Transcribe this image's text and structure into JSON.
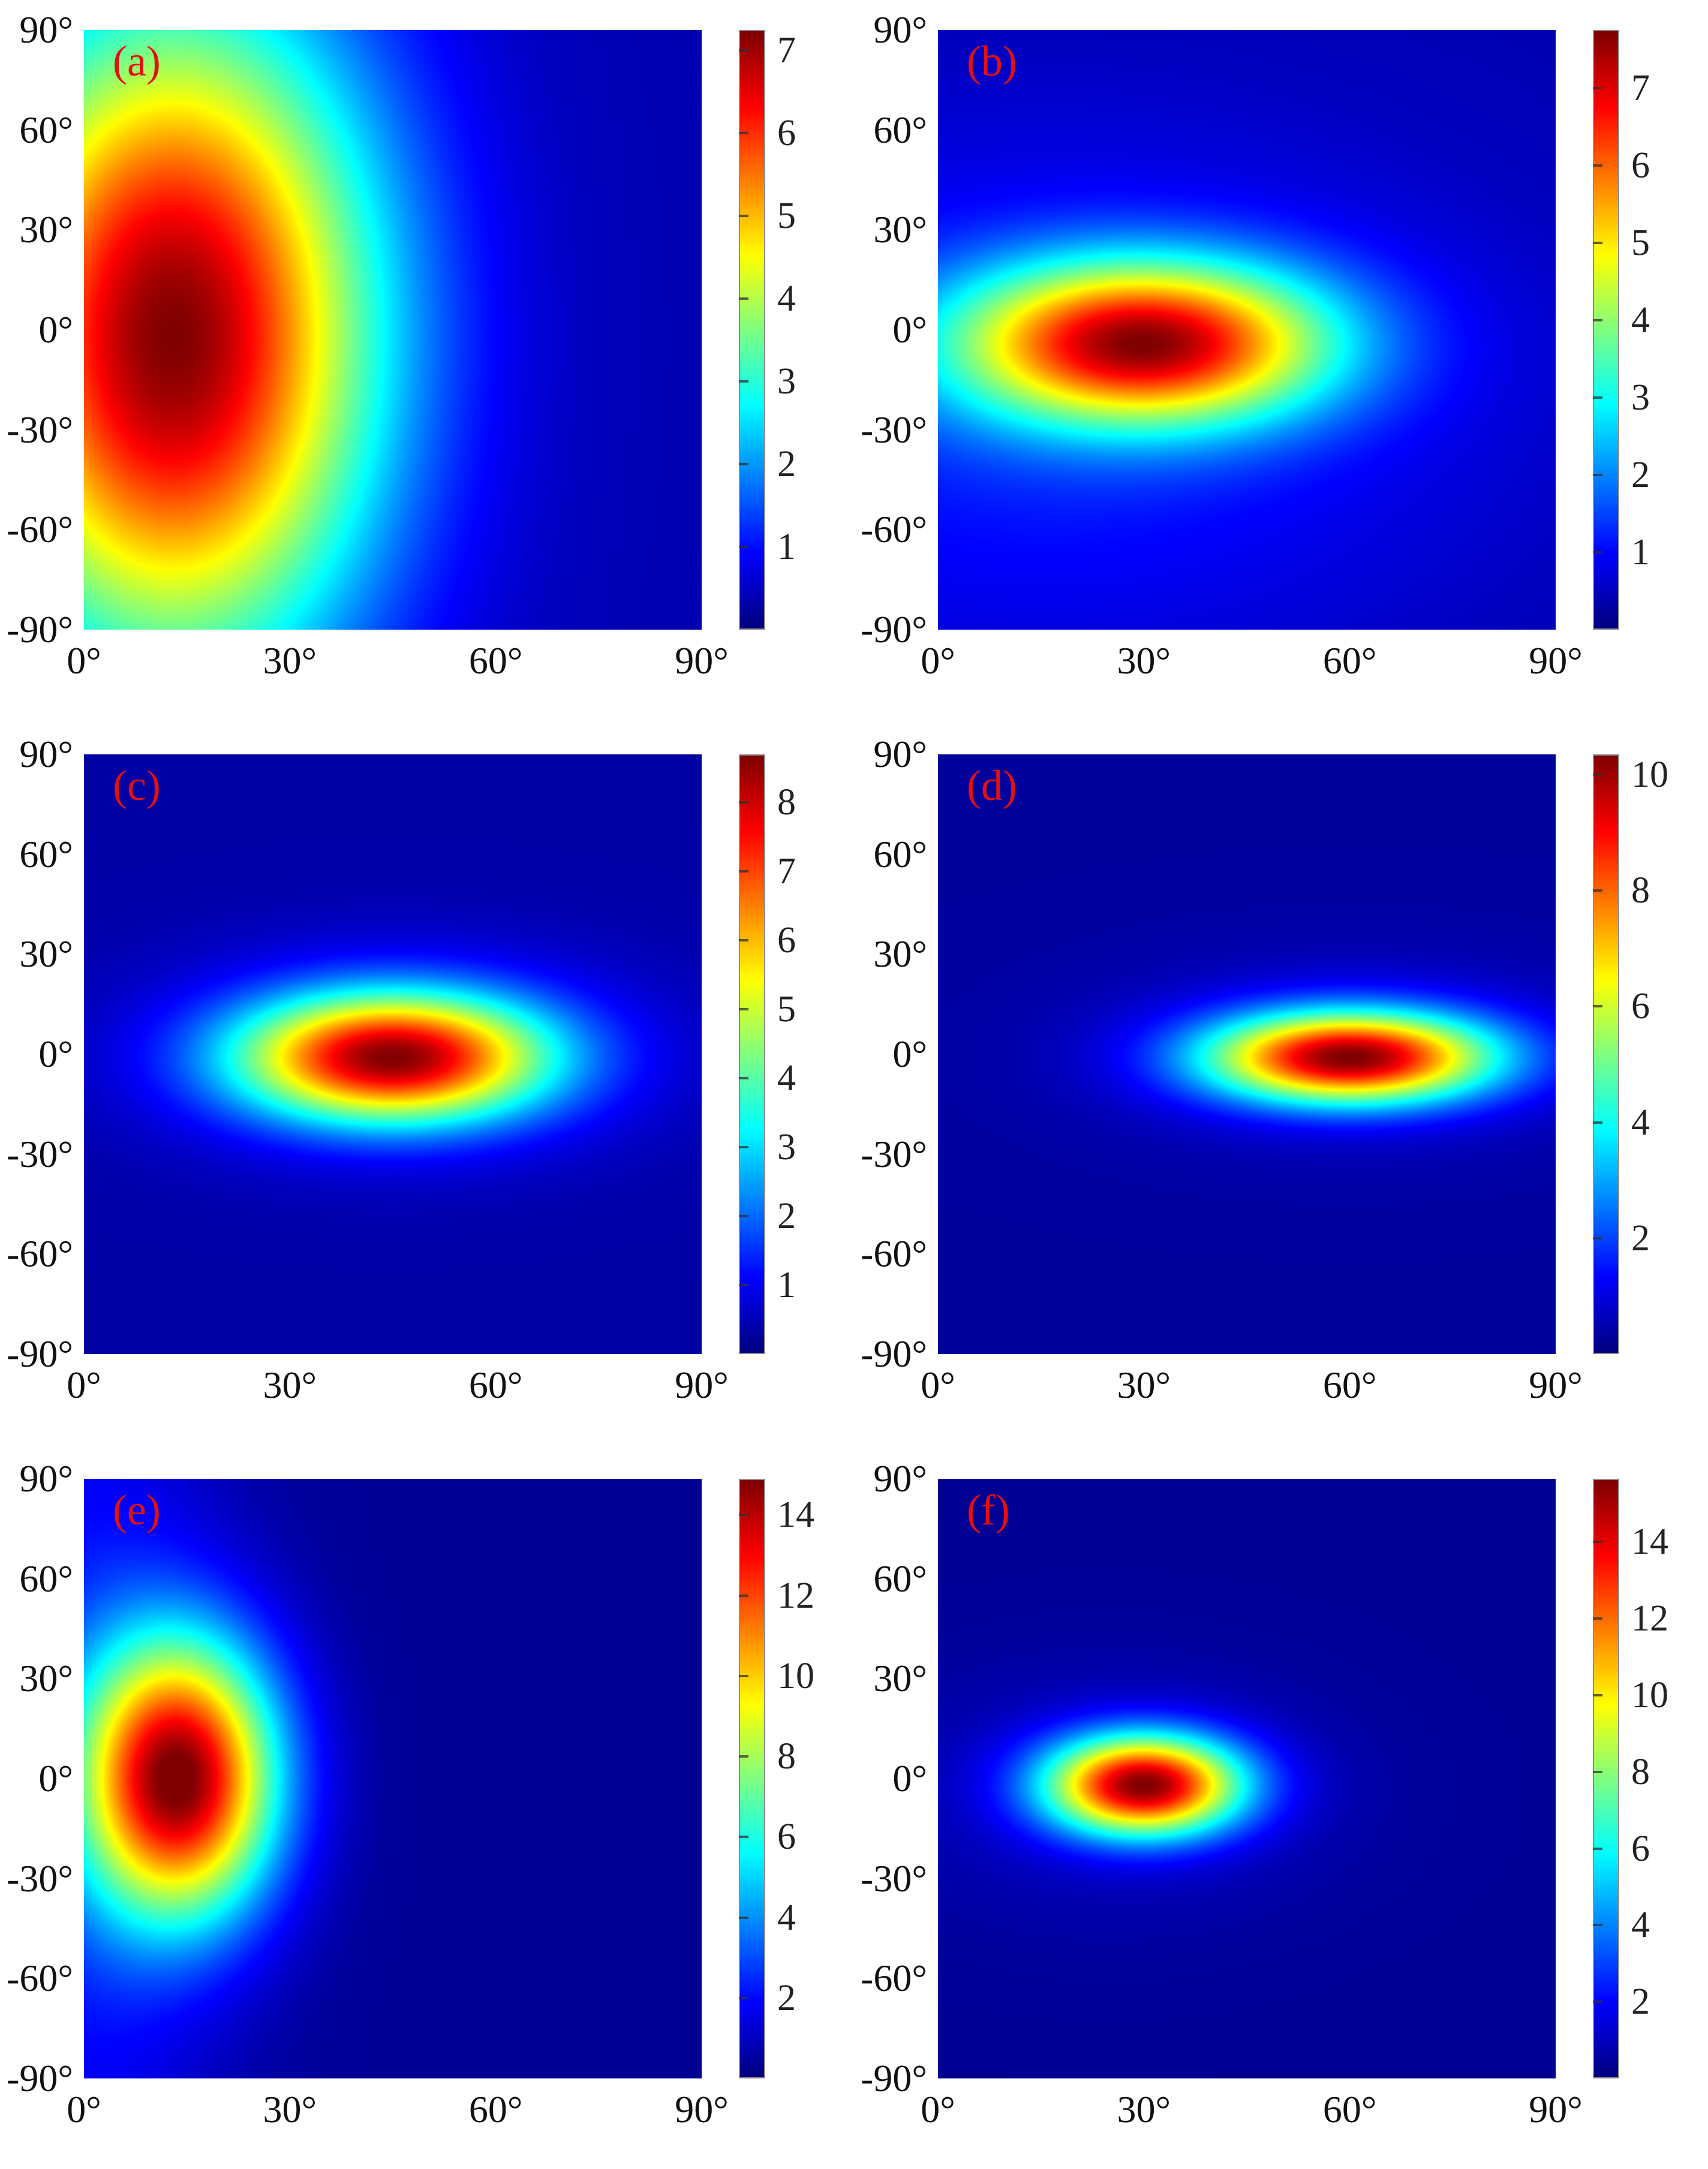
{
  "figure": {
    "kind": "heatmap-grid",
    "rows": 3,
    "cols": 2,
    "colormap": "jet",
    "label_color": "#e41010"
  },
  "axes": {
    "x_ticks": [
      "0°",
      "30°",
      "60°",
      "90°"
    ],
    "y_ticks": [
      "90°",
      "60°",
      "30°",
      "0°",
      "-30°",
      "-60°",
      "-90°"
    ],
    "x_range_deg": [
      0,
      90
    ],
    "y_range_deg": [
      -90,
      90
    ]
  },
  "chart_data": [
    {
      "panel": "a",
      "label": "(a)",
      "type": "heatmap",
      "colormap": "jet",
      "x_range_deg": [
        0,
        90
      ],
      "y_range_deg": [
        -90,
        90
      ],
      "peak": {
        "x_deg": 13,
        "y_deg": 0,
        "value": 7.2
      },
      "colorbar": {
        "ticks": [
          7,
          6,
          5,
          4,
          3,
          2,
          1
        ],
        "scale_max": 7.25
      },
      "baseline": 0.35,
      "components": [
        {
          "amp": 6.9,
          "x0": 13,
          "y0": -2,
          "sx": 21,
          "sy": 70
        }
      ]
    },
    {
      "panel": "b",
      "label": "(b)",
      "type": "heatmap",
      "colormap": "jet",
      "x_range_deg": [
        0,
        90
      ],
      "y_range_deg": [
        -90,
        90
      ],
      "peak": {
        "x_deg": 30,
        "y_deg": -3,
        "value": 7.7
      },
      "colorbar": {
        "ticks": [
          7,
          6,
          5,
          4,
          3,
          2,
          1
        ],
        "scale_max": 7.75
      },
      "baseline": 0.35,
      "components": [
        {
          "amp": 6.6,
          "x0": 30,
          "y0": -4,
          "sx": 19,
          "sy": 17
        },
        {
          "amp": 0.9,
          "x0": 15,
          "y0": -20,
          "sx": 45,
          "sy": 55
        }
      ]
    },
    {
      "panel": "c",
      "label": "(c)",
      "type": "heatmap",
      "colormap": "jet",
      "x_range_deg": [
        0,
        90
      ],
      "y_range_deg": [
        -90,
        90
      ],
      "peak": {
        "x_deg": 45,
        "y_deg": 0,
        "value": 8.6
      },
      "colorbar": {
        "ticks": [
          8,
          7,
          6,
          5,
          4,
          3,
          2,
          1
        ],
        "scale_max": 8.7
      },
      "baseline": 0.3,
      "components": [
        {
          "amp": 7.8,
          "x0": 45,
          "y0": -1,
          "sx": 16,
          "sy": 13.5
        },
        {
          "amp": 0.6,
          "x0": 45,
          "y0": 0,
          "sx": 30,
          "sy": 26
        }
      ]
    },
    {
      "panel": "d",
      "label": "(d)",
      "type": "heatmap",
      "colormap": "jet",
      "x_range_deg": [
        0,
        90
      ],
      "y_range_deg": [
        -90,
        90
      ],
      "peak": {
        "x_deg": 60,
        "y_deg": 0,
        "value": 10.3
      },
      "colorbar": {
        "ticks": [
          10,
          8,
          6,
          4,
          2
        ],
        "scale_max": 10.35
      },
      "baseline": 0.3,
      "components": [
        {
          "amp": 9.4,
          "x0": 60,
          "y0": -1,
          "sx": 14.5,
          "sy": 9.5
        },
        {
          "amp": 0.7,
          "x0": 60,
          "y0": 0,
          "sx": 27,
          "sy": 20
        }
      ]
    },
    {
      "panel": "e",
      "label": "(e)",
      "type": "heatmap",
      "colormap": "jet",
      "x_range_deg": [
        0,
        90
      ],
      "y_range_deg": [
        -90,
        90
      ],
      "peak": {
        "x_deg": 14,
        "y_deg": 0,
        "value": 14.8
      },
      "colorbar": {
        "ticks": [
          14,
          12,
          10,
          8,
          6,
          4,
          2
        ],
        "scale_max": 14.9
      },
      "baseline": 0.3,
      "components": [
        {
          "amp": 13.9,
          "x0": 14,
          "y0": 0,
          "sx": 10,
          "sy": 29
        },
        {
          "amp": 1.8,
          "x0": 0,
          "y0": 0,
          "sx": 14,
          "sy": 120
        }
      ]
    },
    {
      "panel": "f",
      "label": "(f)",
      "type": "heatmap",
      "colormap": "jet",
      "x_range_deg": [
        0,
        90
      ],
      "y_range_deg": [
        -90,
        90
      ],
      "peak": {
        "x_deg": 30,
        "y_deg": -2,
        "value": 15.6
      },
      "colorbar": {
        "ticks": [
          14,
          12,
          10,
          8,
          6,
          4,
          2
        ],
        "scale_max": 15.65
      },
      "baseline": 0.3,
      "components": [
        {
          "amp": 14.6,
          "x0": 30,
          "y0": -2,
          "sx": 10,
          "sy": 10.5
        },
        {
          "amp": 0.8,
          "x0": 25,
          "y0": -5,
          "sx": 25,
          "sy": 28
        }
      ]
    }
  ]
}
